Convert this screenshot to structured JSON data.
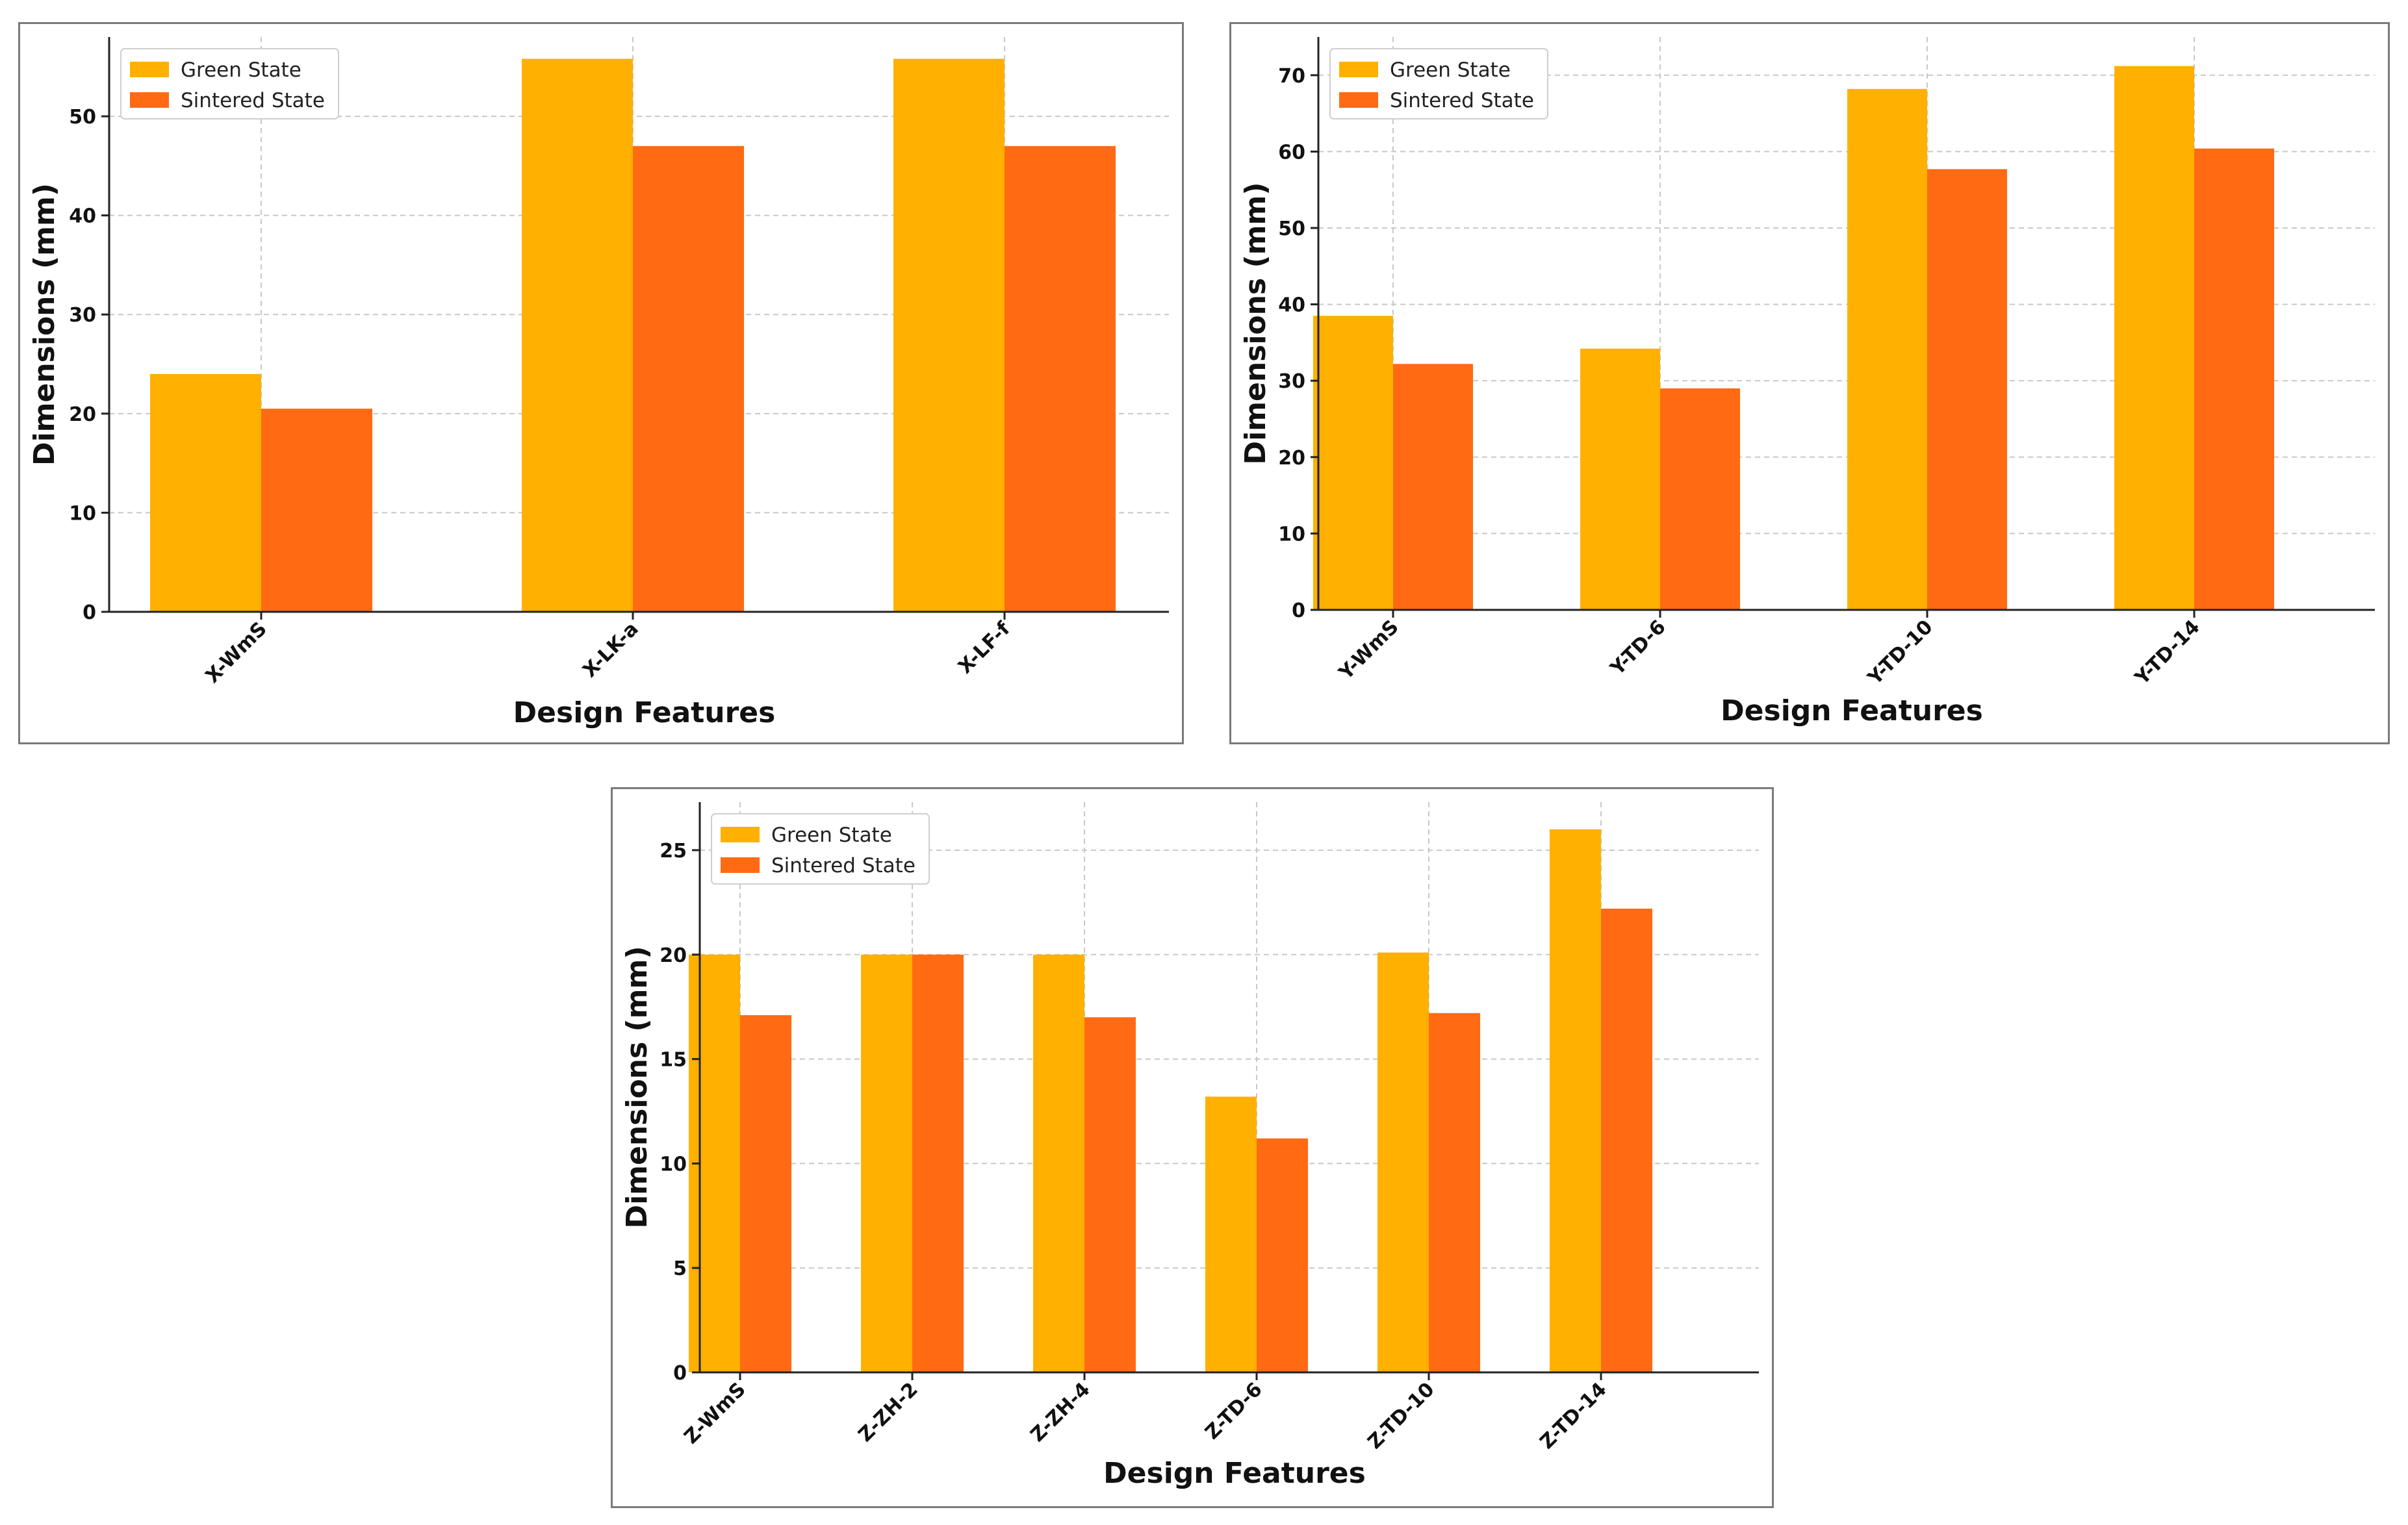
{
  "colors": {
    "green_state": "#FFB000",
    "sintered_state": "#FF6A13"
  },
  "chart_data": [
    {
      "type": "bar",
      "id": "x",
      "categories": [
        "X-WmS",
        "X-LK-a",
        "X-LF-f"
      ],
      "series": [
        {
          "name": "Green State",
          "values": [
            24.0,
            55.8,
            55.8
          ]
        },
        {
          "name": "Sintered State",
          "values": [
            20.5,
            47.0,
            47.0
          ]
        }
      ],
      "xlabel": "Design Features",
      "ylabel": "Dimensions (mm)",
      "ylim": [
        0,
        58
      ],
      "yticks": [
        0,
        10,
        20,
        30,
        40,
        50
      ],
      "grid": true,
      "legend": "top-left"
    },
    {
      "type": "bar",
      "id": "y",
      "categories": [
        "Y-WmS",
        "Y-TD-6",
        "Y-TD-10",
        "Y-TD-14"
      ],
      "series": [
        {
          "name": "Green State",
          "values": [
            38.5,
            34.2,
            68.2,
            71.2
          ]
        },
        {
          "name": "Sintered State",
          "values": [
            32.2,
            29.0,
            57.7,
            60.4
          ]
        }
      ],
      "xlabel": "Design Features",
      "ylabel": "Dimensions (mm)",
      "ylim": [
        0,
        75
      ],
      "yticks": [
        0,
        10,
        20,
        30,
        40,
        50,
        60,
        70
      ],
      "grid": true,
      "legend": "top-left"
    },
    {
      "type": "bar",
      "id": "z",
      "categories": [
        "Z-WmS",
        "Z-ZH-2",
        "Z-ZH-4",
        "Z-TD-6",
        "Z-TD-10",
        "Z-TD-14"
      ],
      "series": [
        {
          "name": "Green State",
          "values": [
            20.0,
            20.0,
            20.0,
            13.2,
            20.1,
            26.0
          ]
        },
        {
          "name": "Sintered State",
          "values": [
            17.1,
            20.0,
            17.0,
            11.2,
            17.2,
            22.2
          ]
        }
      ],
      "xlabel": "Design Features",
      "ylabel": "Dimensions (mm)",
      "ylim": [
        0,
        27.3
      ],
      "yticks": [
        0,
        5,
        10,
        15,
        20,
        25
      ],
      "grid": true,
      "legend": "top-left"
    }
  ]
}
